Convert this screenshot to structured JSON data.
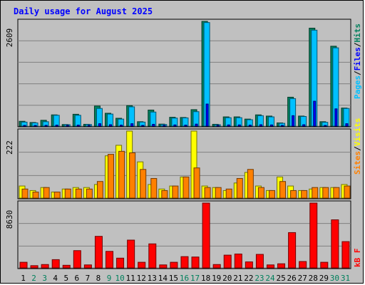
{
  "chart_data": {
    "type": "bar",
    "title": "Daily usage for August 2025",
    "categories": [
      "1",
      "2",
      "3",
      "4",
      "5",
      "6",
      "7",
      "8",
      "9",
      "10",
      "11",
      "12",
      "13",
      "14",
      "15",
      "16",
      "17",
      "18",
      "19",
      "20",
      "21",
      "22",
      "23",
      "24",
      "25",
      "26",
      "27",
      "28",
      "29",
      "30",
      "31"
    ],
    "weekend_days": [
      "2",
      "3",
      "9",
      "10",
      "16",
      "17",
      "23",
      "24",
      "30",
      "31"
    ],
    "panels": [
      {
        "name": "hits-files-pages",
        "ymax_label": "2609",
        "ymax": 2609,
        "legend": [
          "Pages",
          "Files",
          "Hits"
        ],
        "series": [
          {
            "name": "Hits",
            "color": "#00805c",
            "values": [
              120,
              90,
              145,
              280,
              40,
              295,
              45,
              500,
              320,
              195,
              510,
              110,
              400,
              50,
              220,
              215,
              410,
              2609,
              45,
              230,
              230,
              175,
              280,
              250,
              80,
              720,
              250,
              2440,
              110,
              1990,
              450
            ]
          },
          {
            "name": "Files",
            "color": "#00c0ff",
            "values": [
              100,
              80,
              110,
              270,
              35,
              270,
              40,
              440,
              300,
              175,
              480,
              100,
              350,
              40,
              200,
              205,
              360,
              2580,
              35,
              210,
              210,
              160,
              260,
              230,
              70,
              685,
              240,
              2390,
              95,
              1950,
              440
            ]
          },
          {
            "name": "Pages",
            "color": "#0000ff",
            "values": [
              15,
              10,
              20,
              25,
              5,
              25,
              5,
              60,
              35,
              25,
              60,
              15,
              45,
              5,
              30,
              25,
              50,
              550,
              5,
              30,
              30,
              25,
              35,
              30,
              10,
              260,
              35,
              620,
              15,
              430,
              60
            ]
          }
        ]
      },
      {
        "name": "visits-sites",
        "ymax_label": "222",
        "ymax": 222,
        "legend": [
          "Sites",
          "Visits"
        ],
        "series": [
          {
            "name": "Visits",
            "color": "#ffff00",
            "values": [
              40,
              25,
              35,
              20,
              30,
              35,
              35,
              45,
              140,
              175,
              222,
              120,
              45,
              30,
              40,
              70,
              222,
              40,
              35,
              25,
              50,
              85,
              40,
              25,
              70,
              40,
              25,
              30,
              35,
              35,
              45
            ]
          },
          {
            "name": "Sites",
            "color": "#ff8000",
            "values": [
              30,
              20,
              35,
              20,
              30,
              30,
              30,
              55,
              145,
              155,
              150,
              95,
              65,
              25,
              40,
              70,
              100,
              35,
              35,
              30,
              65,
              95,
              35,
              25,
              55,
              25,
              25,
              35,
              35,
              35,
              40
            ]
          }
        ]
      },
      {
        "name": "kbytes",
        "ymax_label": "8630",
        "ymax": 8630,
        "legend": [
          "kB F"
        ],
        "series": [
          {
            "name": "kB F",
            "color": "#ff0000",
            "values": [
              750,
              300,
              450,
              1100,
              350,
              2300,
              400,
              4200,
              2200,
              1300,
              3700,
              750,
              3200,
              400,
              750,
              1500,
              1450,
              8630,
              450,
              1700,
              1850,
              800,
              1800,
              400,
              550,
              4700,
              850,
              8630,
              750,
              6400,
              3500
            ]
          }
        ]
      }
    ],
    "grid": true,
    "legend_placement": "right, vertical"
  }
}
